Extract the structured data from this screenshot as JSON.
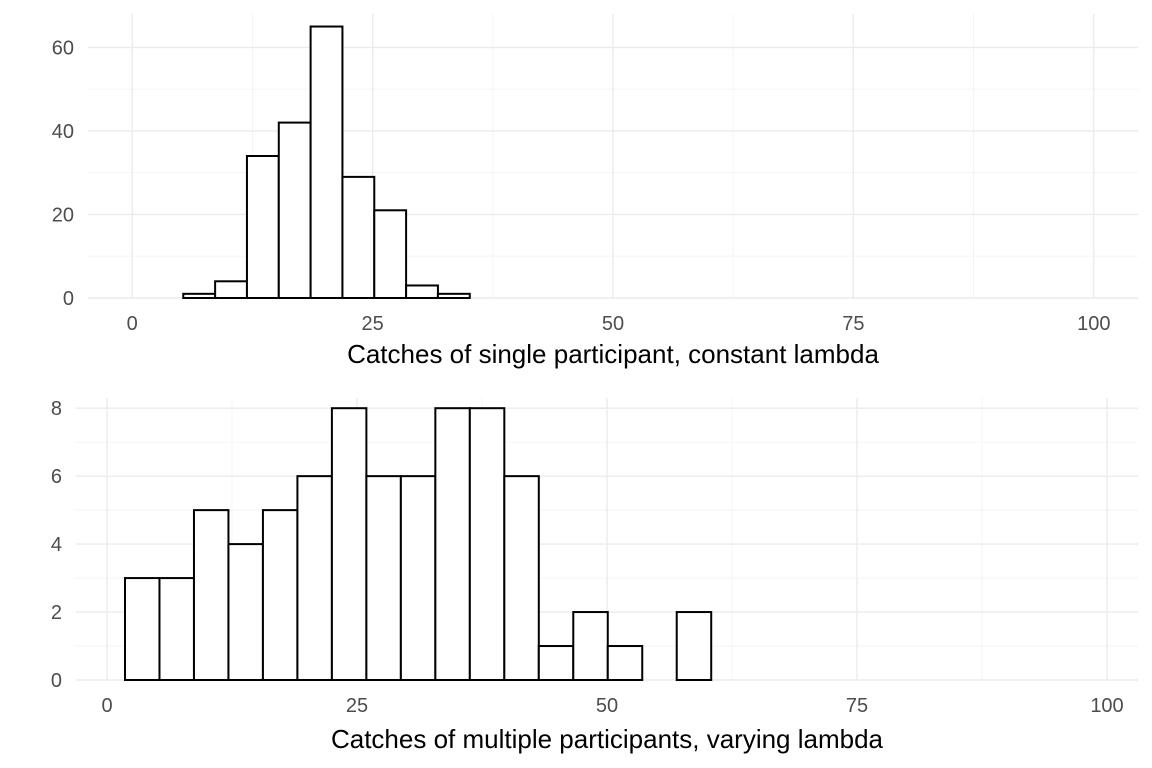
{
  "chart_data": [
    {
      "type": "bar",
      "subtype": "histogram",
      "xlabel": "Catches of single participant, constant lambda",
      "ylabel": "",
      "xlim": [
        -4.6,
        104.6
      ],
      "ylim": [
        0,
        68
      ],
      "x_ticks": [
        0,
        25,
        50,
        75,
        100
      ],
      "y_ticks": [
        0,
        20,
        40,
        60
      ],
      "bin_start": 2,
      "bin_width": 3.3103,
      "counts": [
        0,
        1,
        4,
        34,
        42,
        65,
        29,
        21,
        3,
        1,
        0,
        0,
        0,
        0,
        0,
        0,
        0,
        0,
        0,
        0,
        0,
        0,
        0,
        0,
        0,
        0,
        0,
        0,
        0
      ],
      "grid": true,
      "colors": {
        "fill": "#ffffff",
        "outline": "#000000",
        "grid": "#ebebeb"
      }
    },
    {
      "type": "bar",
      "subtype": "histogram",
      "xlabel": "Catches of multiple participants, varying lambda",
      "ylabel": "",
      "xlim": [
        -3.1,
        103.1
      ],
      "ylim": [
        0,
        8.3
      ],
      "x_ticks": [
        0,
        25,
        50,
        75,
        100
      ],
      "y_ticks": [
        0,
        2,
        4,
        6,
        8
      ],
      "bin_start": 1.8,
      "bin_width": 3.4483,
      "counts": [
        3,
        3,
        5,
        4,
        5,
        6,
        8,
        6,
        6,
        8,
        8,
        6,
        1,
        2,
        1,
        0,
        2,
        0,
        0,
        0,
        0,
        0,
        0,
        0,
        0,
        0,
        0,
        0,
        0
      ],
      "grid": true,
      "colors": {
        "fill": "#ffffff",
        "outline": "#000000",
        "grid": "#ebebeb"
      }
    }
  ]
}
